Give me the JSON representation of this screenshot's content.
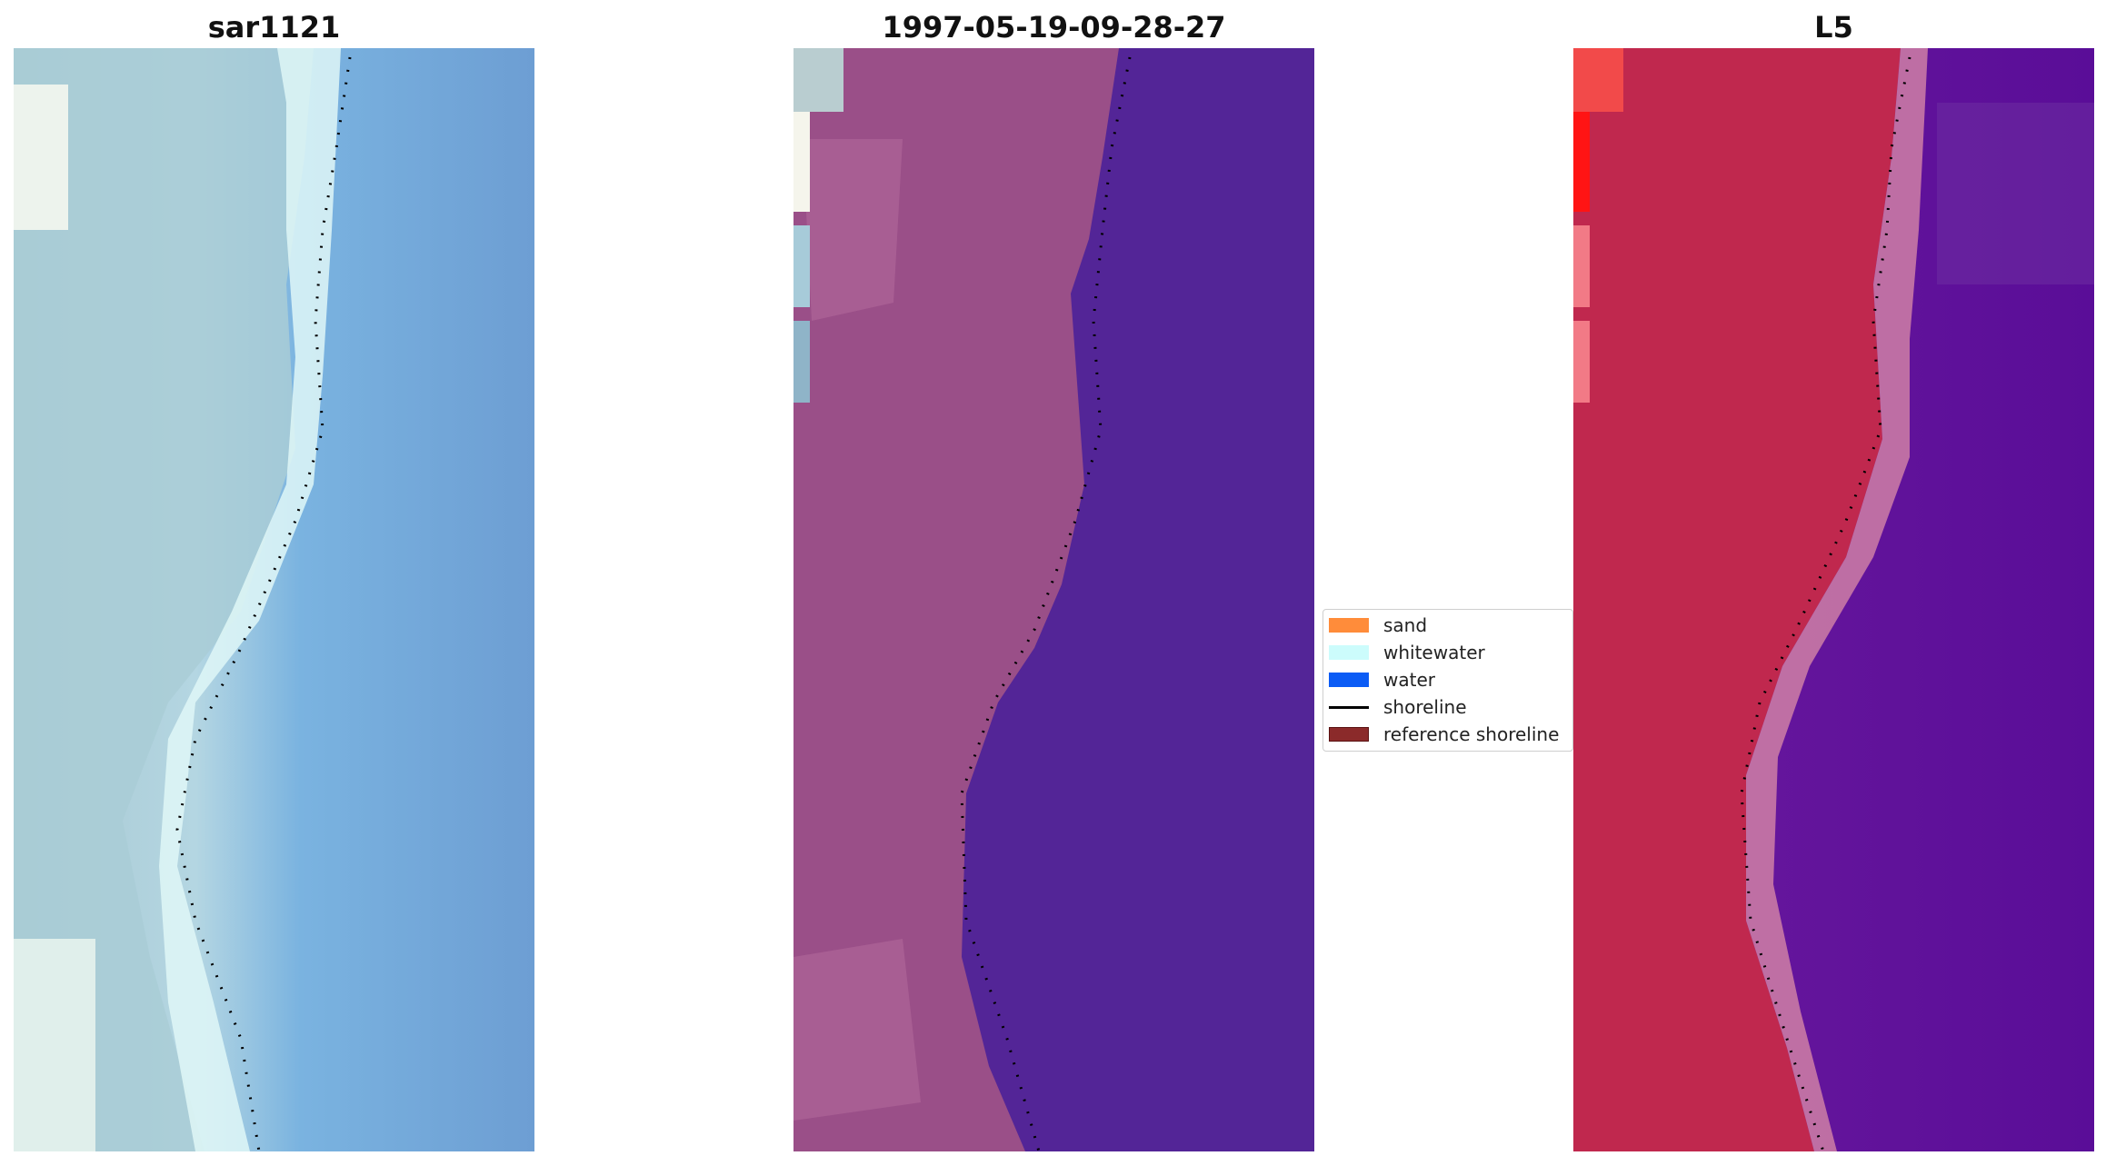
{
  "panels": [
    {
      "title": "sar1121"
    },
    {
      "title": "1997-05-19-09-28-27"
    },
    {
      "title": "L5"
    }
  ],
  "legend": {
    "items": [
      {
        "label": "sand",
        "color": "#ff8c3a",
        "kind": "patch"
      },
      {
        "label": "whitewater",
        "color": "#ccfcfc",
        "kind": "patch"
      },
      {
        "label": "water",
        "color": "#0b5cf5",
        "kind": "patch"
      },
      {
        "label": "shoreline",
        "color": "#000000",
        "kind": "line"
      },
      {
        "label": "reference shoreline",
        "color": "#8b2a2a",
        "kind": "patch"
      }
    ]
  },
  "colors": {
    "rgb_water": "#6ea2d8",
    "rgb_whitewater": "#dcf8f8",
    "rgb_land": "#9fbfcc",
    "class_land": "#9a4f88",
    "class_water": "#532597",
    "index_land": "#c0284e",
    "index_water": "#5c109c",
    "index_edge": "#cf7fa6"
  }
}
